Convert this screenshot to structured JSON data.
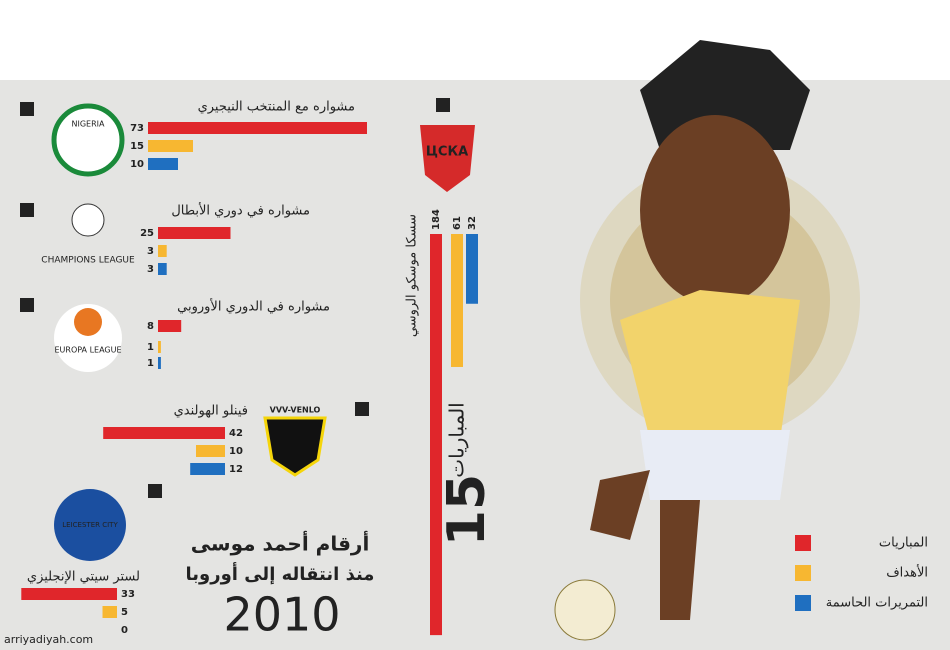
{
  "legend": [
    {
      "name": "المباريات",
      "color": "#e0262b"
    },
    {
      "name": "الأهداف",
      "color": "#f7b731"
    },
    {
      "name": "التمريرات الحاسمة",
      "color": "#1f6fc0"
    }
  ],
  "headline": {
    "line1": "أرقام أحمد موسى",
    "line2": "منذ انتقاله إلى أوروبا",
    "year": "2010"
  },
  "annotation": {
    "number": "15",
    "text": "المباريات"
  },
  "logos": {
    "nigeria": "NIGERIA",
    "champions": "CHAMPIONS LEAGUE",
    "europa": "EUROPA LEAGUE",
    "venlo": "VVV-VENLO",
    "leicester": "LEICESTER CITY",
    "cska": "ЦСКА"
  },
  "watermark": "arriyadiyah.com",
  "chart_data": [
    {
      "type": "bar",
      "title": "مشواره مع المنتخب النيجيري",
      "values": [
        73,
        15,
        10
      ]
    },
    {
      "type": "bar",
      "title": "مشواره في دوري الأبطال",
      "values": [
        25,
        3,
        3
      ]
    },
    {
      "type": "bar",
      "title": "مشواره في الدوري الأوروبي",
      "values": [
        8,
        1,
        1
      ]
    },
    {
      "type": "bar",
      "title": "فينلو الهولندي",
      "values": [
        42,
        10,
        12
      ]
    },
    {
      "type": "bar",
      "title": "لستر سيتي الإنجليزي",
      "values": [
        33,
        5,
        0
      ]
    },
    {
      "type": "bar",
      "title": "سسكا موسكو الروسي",
      "values": [
        184,
        61,
        32
      ]
    }
  ]
}
